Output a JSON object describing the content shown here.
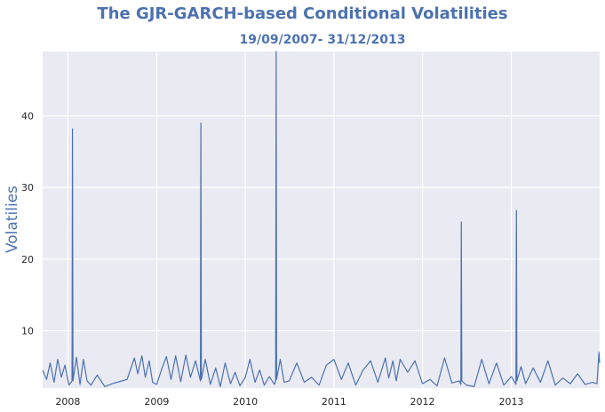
{
  "chart_data": {
    "type": "line",
    "title": "The GJR-GARCH-based Conditional Volatilities",
    "subtitle": "19/09/2007- 31/12/2013",
    "xlabel": "",
    "ylabel": "Volatilies",
    "x_range": [
      "2007-09-19",
      "2013-12-31"
    ],
    "ylim": [
      2.0,
      49.0
    ],
    "x_tick_labels": [
      "2008",
      "2009",
      "2010",
      "2011",
      "2012",
      "2013"
    ],
    "x_ticks": [
      "2008-01-01",
      "2009-01-01",
      "2010-01-01",
      "2011-01-01",
      "2012-01-01",
      "2013-01-01"
    ],
    "y_ticks": [
      10,
      20,
      30,
      40
    ],
    "y_tick_labels": [
      "10",
      "20",
      "30",
      "40"
    ],
    "grid": true,
    "legend": "none",
    "colors": {
      "line": "#4c72b0",
      "background": "#eaeaf2",
      "grid": "#ffffff",
      "title": "#4c72b0"
    },
    "series": [
      {
        "x": [
          "2007-09-19",
          "2007-10-05",
          "2007-10-20",
          "2007-11-05",
          "2007-11-20",
          "2007-12-05",
          "2007-12-20",
          "2008-01-05",
          "2008-01-18",
          "2008-01-20",
          "2008-01-22",
          "2008-02-05",
          "2008-02-20",
          "2008-03-05",
          "2008-03-20",
          "2008-04-05",
          "2008-05-01",
          "2008-06-01",
          "2008-07-01",
          "2008-08-01",
          "2008-09-01",
          "2008-10-01",
          "2008-10-15",
          "2008-11-01",
          "2008-11-15",
          "2008-12-01",
          "2008-12-15",
          "2009-01-01",
          "2009-01-20",
          "2009-02-10",
          "2009-03-01",
          "2009-03-20",
          "2009-04-10",
          "2009-05-01",
          "2009-05-20",
          "2009-06-10",
          "2009-06-30",
          "2009-07-02",
          "2009-07-04",
          "2009-07-20",
          "2009-08-10",
          "2009-09-01",
          "2009-09-20",
          "2009-10-10",
          "2009-11-01",
          "2009-11-20",
          "2009-12-10",
          "2010-01-01",
          "2010-01-20",
          "2010-02-10",
          "2010-03-01",
          "2010-03-20",
          "2010-04-10",
          "2010-05-01",
          "2010-05-06",
          "2010-05-08",
          "2010-05-10",
          "2010-05-25",
          "2010-06-10",
          "2010-07-01",
          "2010-08-01",
          "2010-09-01",
          "2010-10-01",
          "2010-11-01",
          "2010-12-01",
          "2011-01-01",
          "2011-02-01",
          "2011-03-01",
          "2011-04-01",
          "2011-05-01",
          "2011-06-01",
          "2011-07-01",
          "2011-08-01",
          "2011-08-15",
          "2011-09-01",
          "2011-09-15",
          "2011-10-01",
          "2011-11-01",
          "2011-12-01",
          "2012-01-01",
          "2012-02-01",
          "2012-03-01",
          "2012-04-01",
          "2012-05-01",
          "2012-06-01",
          "2012-06-07",
          "2012-06-09",
          "2012-06-11",
          "2012-07-01",
          "2012-08-01",
          "2012-09-01",
          "2012-10-01",
          "2012-11-01",
          "2012-12-01",
          "2013-01-01",
          "2013-01-20",
          "2013-01-22",
          "2013-01-24",
          "2013-02-10",
          "2013-03-01",
          "2013-04-01",
          "2013-05-01",
          "2013-06-01",
          "2013-07-01",
          "2013-08-01",
          "2013-09-01",
          "2013-10-01",
          "2013-11-01",
          "2013-12-01",
          "2013-12-20",
          "2013-12-28",
          "2013-12-31"
        ],
        "values": [
          4.5,
          3.2,
          5.5,
          2.8,
          6.0,
          3.5,
          5.2,
          2.4,
          3.0,
          38.2,
          3.0,
          6.3,
          2.5,
          6.0,
          3.0,
          2.4,
          3.8,
          2.2,
          2.6,
          2.9,
          3.2,
          6.2,
          4.0,
          6.5,
          3.5,
          5.8,
          2.8,
          2.5,
          4.5,
          6.4,
          3.2,
          6.5,
          2.9,
          6.6,
          3.5,
          5.8,
          3.0,
          39.0,
          3.2,
          6.0,
          2.5,
          4.8,
          2.2,
          5.5,
          2.6,
          4.2,
          2.3,
          3.5,
          6.0,
          2.8,
          4.5,
          2.4,
          3.6,
          2.5,
          3.0,
          49.0,
          3.2,
          6.0,
          2.8,
          3.0,
          5.5,
          2.8,
          3.5,
          2.4,
          5.2,
          6.0,
          3.2,
          5.5,
          2.4,
          4.5,
          5.8,
          2.8,
          6.2,
          3.4,
          5.8,
          3.0,
          6.0,
          4.2,
          5.8,
          2.6,
          3.2,
          2.3,
          6.2,
          2.7,
          3.0,
          2.5,
          25.2,
          3.0,
          2.4,
          2.2,
          6.0,
          2.6,
          5.5,
          2.4,
          3.6,
          2.5,
          26.8,
          3.0,
          5.0,
          2.6,
          4.8,
          2.8,
          5.8,
          2.4,
          3.4,
          2.6,
          4.0,
          2.5,
          2.8,
          2.6,
          7.0,
          5.5
        ]
      }
    ]
  }
}
